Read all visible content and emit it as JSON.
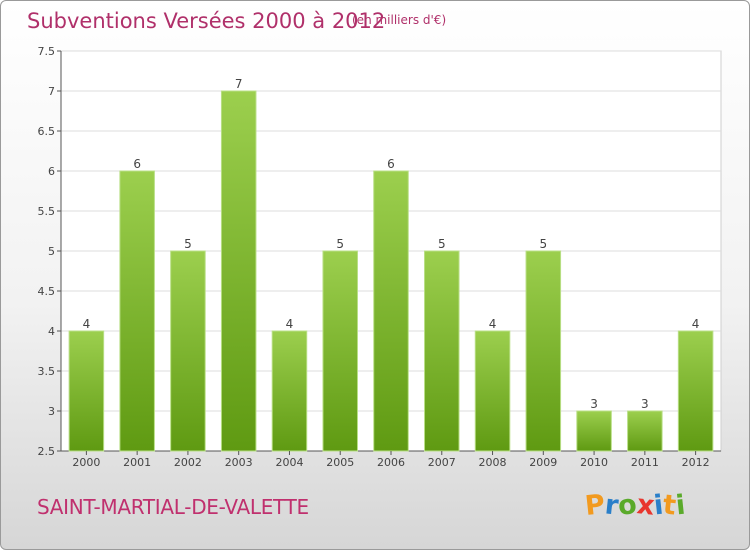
{
  "chart_data": {
    "type": "bar",
    "title": "Subventions Versées 2000 à 2012",
    "subtitle": "(en milliers d'€)",
    "categories": [
      "2000",
      "2001",
      "2002",
      "2003",
      "2004",
      "2005",
      "2006",
      "2007",
      "2008",
      "2009",
      "2010",
      "2011",
      "2012"
    ],
    "values": [
      4,
      6,
      5,
      7,
      4,
      5,
      6,
      5,
      4,
      5,
      3,
      3,
      4
    ],
    "ylim": [
      2.5,
      7.5
    ],
    "yticks": [
      2.5,
      3,
      3.5,
      4,
      4.5,
      5,
      5.5,
      6,
      6.5,
      7,
      7.5
    ],
    "xlabel": "",
    "ylabel": "",
    "grid": true,
    "colors": {
      "bar_top": "#9ccf4e",
      "bar_bottom": "#5f9a12",
      "title": "#b0306a"
    }
  },
  "commune": "SAINT-MARTIAL-DE-VALETTE",
  "logo": {
    "letters": [
      "P",
      "r",
      "o",
      "x",
      "i",
      "t",
      "i"
    ],
    "colors": [
      "#f29a1f",
      "#2a7fc9",
      "#5aaa2a",
      "#e8362e",
      "#2a7fc9",
      "#f29a1f",
      "#5aaa2a"
    ]
  }
}
